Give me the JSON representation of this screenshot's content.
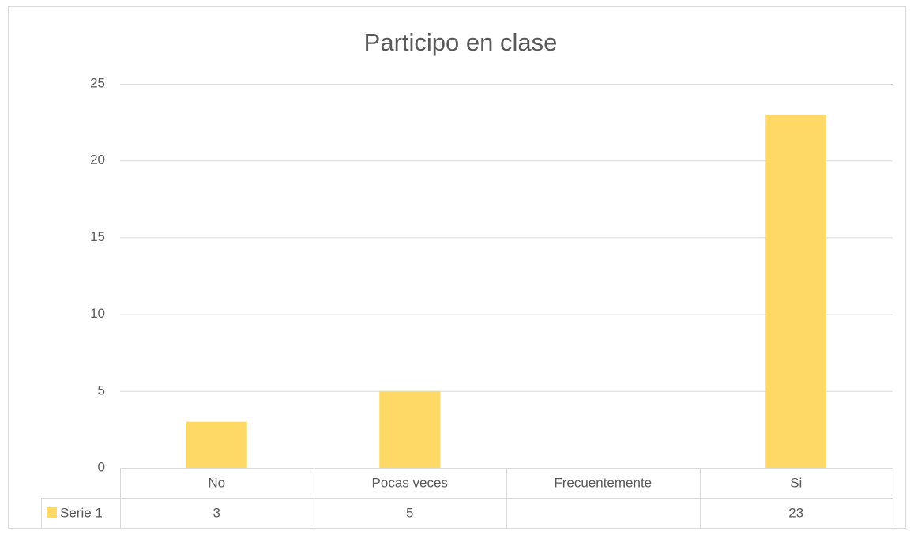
{
  "chart_data": {
    "type": "bar",
    "title": "Participo en clase",
    "categories": [
      "No",
      "Pocas veces",
      "Frecuentemente",
      "Si"
    ],
    "series": [
      {
        "name": "Serie 1",
        "color": "#ffd966",
        "values": [
          3,
          5,
          null,
          23
        ]
      }
    ],
    "ylim": [
      0,
      25
    ],
    "yticks": [
      0,
      5,
      10,
      15,
      20,
      25
    ],
    "grid": true,
    "data_table": true
  }
}
